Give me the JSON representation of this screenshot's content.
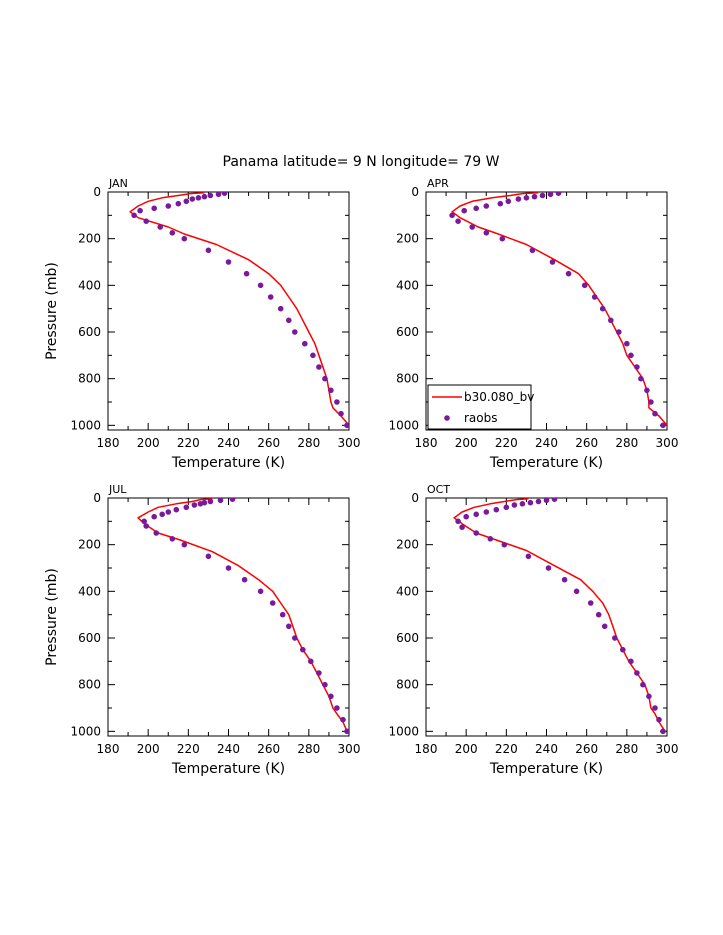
{
  "figure": {
    "title": "Panama  latitude= 9 N longitude= 79 W"
  },
  "colors": {
    "model_line": "#ff0000",
    "obs_marker": "#7a1a9a",
    "axis": "#000000",
    "text": "#000000"
  },
  "legend": {
    "panel": "APR",
    "placement": "bottom-left",
    "entries": [
      {
        "label": "b30.080_bv",
        "kind": "line",
        "color": "#ff0000"
      },
      {
        "label": "raobs",
        "kind": "marker",
        "color": "#7a1a9a"
      }
    ]
  },
  "chart_data": [
    {
      "type": "line",
      "panel": "JAN",
      "title": "JAN",
      "xlabel": "Temperature (K)",
      "ylabel": "Pressure (mb)",
      "xlim": [
        180,
        300
      ],
      "ylim": [
        1020,
        0
      ],
      "xticks": [
        180,
        200,
        220,
        240,
        260,
        280,
        300
      ],
      "yticks": [
        0,
        200,
        400,
        600,
        800,
        1000
      ],
      "series": [
        {
          "name": "b30.080_bv",
          "kind": "line",
          "points": [
            [
              228,
              3
            ],
            [
              221,
              7
            ],
            [
              215,
              15
            ],
            [
              207,
              25
            ],
            [
              200,
              40
            ],
            [
              195,
              60
            ],
            [
              191,
              85
            ],
            [
              195,
              110
            ],
            [
              210,
              150
            ],
            [
              218,
              180
            ],
            [
              234,
              225
            ],
            [
              250,
              290
            ],
            [
              260,
              350
            ],
            [
              266,
              400
            ],
            [
              270,
              450
            ],
            [
              274,
              500
            ],
            [
              277,
              550
            ],
            [
              280,
              600
            ],
            [
              283,
              650
            ],
            [
              285,
              700
            ],
            [
              287,
              750
            ],
            [
              289,
              800
            ],
            [
              290,
              850
            ],
            [
              291,
              900
            ],
            [
              292,
              925
            ],
            [
              296,
              960
            ],
            [
              300,
              1000
            ]
          ]
        },
        {
          "name": "raobs",
          "kind": "marker",
          "points": [
            [
              238,
              5
            ],
            [
              235,
              10
            ],
            [
              231,
              15
            ],
            [
              228,
              20
            ],
            [
              225,
              25
            ],
            [
              222,
              30
            ],
            [
              219,
              40
            ],
            [
              215,
              50
            ],
            [
              210,
              60
            ],
            [
              203,
              70
            ],
            [
              196,
              80
            ],
            [
              193,
              100
            ],
            [
              199,
              125
            ],
            [
              206,
              150
            ],
            [
              212,
              175
            ],
            [
              218,
              200
            ],
            [
              230,
              250
            ],
            [
              240,
              300
            ],
            [
              249,
              350
            ],
            [
              256,
              400
            ],
            [
              261,
              450
            ],
            [
              266,
              500
            ],
            [
              270,
              550
            ],
            [
              273,
              600
            ],
            [
              278,
              650
            ],
            [
              282,
              700
            ],
            [
              285,
              750
            ],
            [
              288,
              800
            ],
            [
              291,
              850
            ],
            [
              294,
              900
            ],
            [
              296,
              950
            ],
            [
              299,
              1000
            ]
          ]
        }
      ]
    },
    {
      "type": "line",
      "panel": "APR",
      "title": "APR",
      "xlabel": "Temperature (K)",
      "ylabel": "",
      "xlim": [
        180,
        300
      ],
      "ylim": [
        1020,
        0
      ],
      "xticks": [
        180,
        200,
        220,
        240,
        260,
        280,
        300
      ],
      "yticks": [
        0,
        200,
        400,
        600,
        800,
        1000
      ],
      "series": [
        {
          "name": "b30.080_bv",
          "kind": "line",
          "points": [
            [
              236,
              3
            ],
            [
              228,
              7
            ],
            [
              222,
              15
            ],
            [
              213,
              25
            ],
            [
              203,
              40
            ],
            [
              197,
              60
            ],
            [
              193,
              85
            ],
            [
              197,
              110
            ],
            [
              206,
              150
            ],
            [
              216,
              180
            ],
            [
              230,
              225
            ],
            [
              244,
              290
            ],
            [
              256,
              350
            ],
            [
              261,
              400
            ],
            [
              265,
              450
            ],
            [
              269,
              500
            ],
            [
              272,
              550
            ],
            [
              275,
              600
            ],
            [
              278,
              650
            ],
            [
              280,
              700
            ],
            [
              284,
              750
            ],
            [
              288,
              800
            ],
            [
              290,
              850
            ],
            [
              291,
              900
            ],
            [
              291,
              925
            ],
            [
              296,
              960
            ],
            [
              300,
              1000
            ]
          ]
        },
        {
          "name": "raobs",
          "kind": "marker",
          "points": [
            [
              246,
              5
            ],
            [
              242,
              10
            ],
            [
              238,
              15
            ],
            [
              234,
              20
            ],
            [
              230,
              25
            ],
            [
              226,
              30
            ],
            [
              221,
              40
            ],
            [
              217,
              50
            ],
            [
              210,
              60
            ],
            [
              205,
              70
            ],
            [
              199,
              80
            ],
            [
              193,
              100
            ],
            [
              196,
              125
            ],
            [
              203,
              150
            ],
            [
              210,
              175
            ],
            [
              218,
              200
            ],
            [
              233,
              250
            ],
            [
              243,
              300
            ],
            [
              251,
              350
            ],
            [
              259,
              400
            ],
            [
              264,
              450
            ],
            [
              268,
              500
            ],
            [
              272,
              550
            ],
            [
              276,
              600
            ],
            [
              280,
              650
            ],
            [
              282,
              700
            ],
            [
              285,
              750
            ],
            [
              287,
              800
            ],
            [
              290,
              850
            ],
            [
              292,
              900
            ],
            [
              294,
              950
            ],
            [
              298,
              1000
            ]
          ]
        }
      ]
    },
    {
      "type": "line",
      "panel": "JUL",
      "title": "JUL",
      "xlabel": "Temperature (K)",
      "ylabel": "Pressure (mb)",
      "xlim": [
        180,
        300
      ],
      "ylim": [
        1020,
        0
      ],
      "xticks": [
        180,
        200,
        220,
        240,
        260,
        280,
        300
      ],
      "yticks": [
        0,
        200,
        400,
        600,
        800,
        1000
      ],
      "series": [
        {
          "name": "b30.080_bv",
          "kind": "line",
          "points": [
            [
              232,
              3
            ],
            [
              226,
              7
            ],
            [
              222,
              15
            ],
            [
              214,
              25
            ],
            [
              205,
              40
            ],
            [
              200,
              60
            ],
            [
              195,
              85
            ],
            [
              198,
              110
            ],
            [
              205,
              150
            ],
            [
              216,
              180
            ],
            [
              232,
              230
            ],
            [
              245,
              290
            ],
            [
              255,
              350
            ],
            [
              262,
              400
            ],
            [
              266,
              450
            ],
            [
              270,
              500
            ],
            [
              272,
              550
            ],
            [
              274,
              600
            ],
            [
              277,
              650
            ],
            [
              281,
              700
            ],
            [
              284,
              750
            ],
            [
              287,
              800
            ],
            [
              290,
              850
            ],
            [
              292,
              900
            ],
            [
              294,
              925
            ],
            [
              297,
              960
            ],
            [
              299,
              1000
            ]
          ]
        },
        {
          "name": "raobs",
          "kind": "marker",
          "points": [
            [
              242,
              5
            ],
            [
              236,
              10
            ],
            [
              231,
              15
            ],
            [
              228,
              20
            ],
            [
              226,
              25
            ],
            [
              223,
              30
            ],
            [
              219,
              40
            ],
            [
              214,
              50
            ],
            [
              210,
              60
            ],
            [
              207,
              70
            ],
            [
              203,
              80
            ],
            [
              198,
              100
            ],
            [
              199,
              120
            ],
            [
              204,
              150
            ],
            [
              212,
              175
            ],
            [
              218,
              200
            ],
            [
              230,
              250
            ],
            [
              240,
              300
            ],
            [
              248,
              350
            ],
            [
              256,
              400
            ],
            [
              262,
              450
            ],
            [
              267,
              500
            ],
            [
              270,
              550
            ],
            [
              273,
              600
            ],
            [
              277,
              650
            ],
            [
              281,
              700
            ],
            [
              285,
              750
            ],
            [
              288,
              800
            ],
            [
              291,
              850
            ],
            [
              294,
              900
            ],
            [
              297,
              950
            ],
            [
              299,
              1000
            ]
          ]
        }
      ]
    },
    {
      "type": "line",
      "panel": "OCT",
      "title": "OCT",
      "xlabel": "Temperature (K)",
      "ylabel": "",
      "xlim": [
        180,
        300
      ],
      "ylim": [
        1020,
        0
      ],
      "xticks": [
        180,
        200,
        220,
        240,
        260,
        280,
        300
      ],
      "yticks": [
        0,
        200,
        400,
        600,
        800,
        1000
      ],
      "series": [
        {
          "name": "b30.080_bv",
          "kind": "line",
          "points": [
            [
              231,
              3
            ],
            [
              225,
              7
            ],
            [
              219,
              15
            ],
            [
              212,
              25
            ],
            [
              204,
              40
            ],
            [
              198,
              60
            ],
            [
              194,
              85
            ],
            [
              198,
              110
            ],
            [
              205,
              150
            ],
            [
              215,
              180
            ],
            [
              230,
              225
            ],
            [
              244,
              290
            ],
            [
              257,
              350
            ],
            [
              263,
              400
            ],
            [
              268,
              450
            ],
            [
              271,
              500
            ],
            [
              273,
              550
            ],
            [
              275,
              600
            ],
            [
              278,
              650
            ],
            [
              281,
              700
            ],
            [
              285,
              750
            ],
            [
              289,
              800
            ],
            [
              291,
              850
            ],
            [
              292,
              900
            ],
            [
              294,
              925
            ],
            [
              296,
              960
            ],
            [
              299,
              1000
            ]
          ]
        },
        {
          "name": "raobs",
          "kind": "marker",
          "points": [
            [
              244,
              5
            ],
            [
              240,
              10
            ],
            [
              236,
              15
            ],
            [
              232,
              20
            ],
            [
              228,
              25
            ],
            [
              224,
              30
            ],
            [
              220,
              40
            ],
            [
              215,
              50
            ],
            [
              210,
              60
            ],
            [
              205,
              70
            ],
            [
              200,
              80
            ],
            [
              196,
              100
            ],
            [
              198,
              125
            ],
            [
              205,
              150
            ],
            [
              212,
              175
            ],
            [
              219,
              200
            ],
            [
              231,
              250
            ],
            [
              241,
              300
            ],
            [
              249,
              350
            ],
            [
              255,
              400
            ],
            [
              262,
              450
            ],
            [
              266,
              500
            ],
            [
              269,
              550
            ],
            [
              274,
              600
            ],
            [
              278,
              650
            ],
            [
              282,
              700
            ],
            [
              285,
              750
            ],
            [
              288,
              800
            ],
            [
              291,
              850
            ],
            [
              294,
              900
            ],
            [
              296,
              950
            ],
            [
              298,
              1000
            ]
          ]
        }
      ]
    }
  ]
}
